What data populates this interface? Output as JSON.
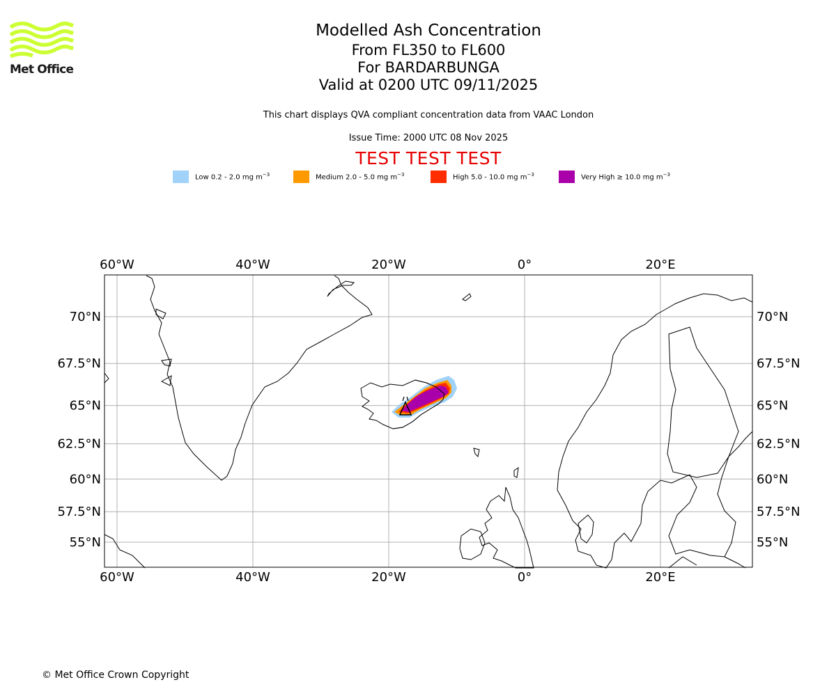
{
  "brand": {
    "name": "Met Office",
    "accent_color": "#ccff33"
  },
  "header": {
    "title": "Modelled Ash Concentration",
    "flight_levels": "From FL350 to FL600",
    "volcano": "For BARDARBUNGA",
    "valid_time": "Valid at 0200 UTC 09/11/2025",
    "description": "This chart displays QVA compliant concentration data from VAAC London",
    "issue_time": "Issue Time: 2000 UTC 08 Nov 2025",
    "test_banner": "TEST TEST TEST",
    "test_color": "#e60000"
  },
  "legend": [
    {
      "label": "Low 0.2 - 2.0 mg m",
      "unit_sup": "−3",
      "color": "#a0d2fa"
    },
    {
      "label": "Medium 2.0 - 5.0 mg m",
      "unit_sup": "−3",
      "color": "#ff9900"
    },
    {
      "label": "High 5.0 - 10.0 mg m",
      "unit_sup": "−3",
      "color": "#ff2d00"
    },
    {
      "label": "Very High ≥ 10.0 mg m",
      "unit_sup": "−3",
      "color": "#aa00aa"
    }
  ],
  "map": {
    "type": "map",
    "lon_range": [
      -62,
      33
    ],
    "lat_range": [
      53.5,
      72.5
    ],
    "longitude_ticks": [
      {
        "value": -60,
        "label": "60°W"
      },
      {
        "value": -40,
        "label": "40°W"
      },
      {
        "value": -20,
        "label": "20°W"
      },
      {
        "value": 0,
        "label": "0°"
      },
      {
        "value": 20,
        "label": "20°E"
      }
    ],
    "latitude_ticks": [
      {
        "value": 70,
        "label": "70°N"
      },
      {
        "value": 67.5,
        "label": "67.5°N"
      },
      {
        "value": 65,
        "label": "65°N"
      },
      {
        "value": 62.5,
        "label": "62.5°N"
      },
      {
        "value": 60,
        "label": "60°N"
      },
      {
        "value": 57.5,
        "label": "57.5°N"
      },
      {
        "value": 55,
        "label": "55°N"
      }
    ],
    "gridlines": true,
    "volcano_location": {
      "name": "Bardarbunga",
      "lat": 64.6,
      "lon": -17.5
    },
    "ash_levels": [
      "Low",
      "Medium",
      "High",
      "Very High"
    ]
  },
  "footer": {
    "copyright": "© Met Office Crown Copyright"
  }
}
